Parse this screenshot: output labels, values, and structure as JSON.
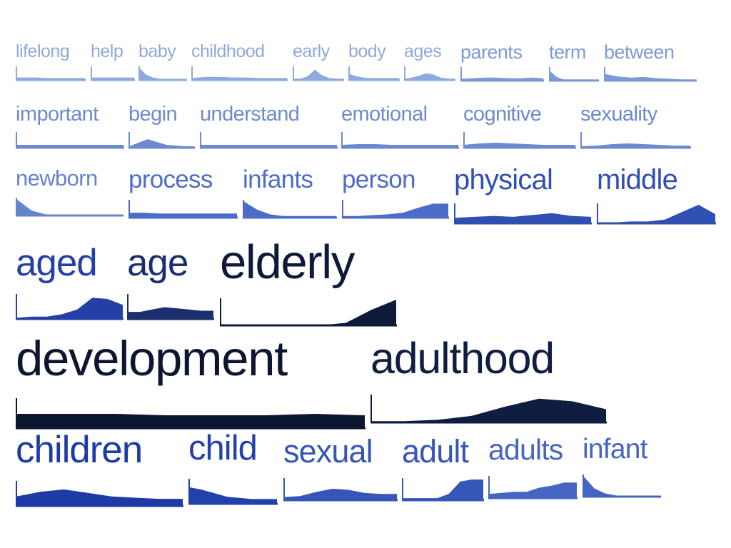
{
  "words": [
    {
      "text": "lifelong",
      "color": "#8fa9dc",
      "trend": [
        0.2,
        0.2,
        0.2,
        0.15,
        0.15,
        0.15,
        0.15,
        0.15
      ]
    },
    {
      "text": "help",
      "color": "#8fa9dc",
      "trend": [
        0.2,
        0.2,
        0.2,
        0.2,
        0.2,
        0.2,
        0.2,
        0.2
      ]
    },
    {
      "text": "baby",
      "color": "#8fa9dc",
      "trend": [
        1.0,
        0.45,
        0.2,
        0.1,
        0.05,
        0.05,
        0.05,
        0.05
      ]
    },
    {
      "text": "childhood",
      "color": "#8fa9dc",
      "trend": [
        0.15,
        0.25,
        0.25,
        0.2,
        0.2,
        0.15,
        0.15,
        0.15
      ]
    },
    {
      "text": "early",
      "color": "#8fa9dc",
      "trend": [
        0.1,
        0.1,
        0.3,
        0.85,
        0.4,
        0.15,
        0.1,
        0.1
      ]
    },
    {
      "text": "body",
      "color": "#8fa9dc",
      "trend": [
        0.5,
        0.3,
        0.2,
        0.15,
        0.15,
        0.15,
        0.15,
        0.15
      ]
    },
    {
      "text": "ages",
      "color": "#8fa9dc",
      "trend": [
        0.1,
        0.2,
        0.35,
        0.55,
        0.45,
        0.2,
        0.1,
        0.1
      ]
    },
    {
      "text": "parents",
      "color": "#7d9ad6",
      "trend": [
        0.15,
        0.2,
        0.25,
        0.25,
        0.2,
        0.2,
        0.25,
        0.2
      ]
    },
    {
      "text": "term",
      "color": "#7d9ad6",
      "trend": [
        0.8,
        0.3,
        0.1,
        0.1,
        0.1,
        0.1,
        0.1,
        0.1
      ]
    },
    {
      "text": "between",
      "color": "#7d9ad6",
      "trend": [
        0.55,
        0.35,
        0.25,
        0.3,
        0.2,
        0.15,
        0.1,
        0.1
      ]
    },
    {
      "text": "important",
      "color": "#6c8ad1",
      "trend": [
        0.2,
        0.2,
        0.2,
        0.2,
        0.2,
        0.2,
        0.2,
        0.2
      ]
    },
    {
      "text": "begin",
      "color": "#6c8ad1",
      "trend": [
        0.1,
        0.35,
        0.6,
        0.4,
        0.2,
        0.15,
        0.1,
        0.1
      ]
    },
    {
      "text": "understand",
      "color": "#6c8ad1",
      "trend": [
        0.2,
        0.2,
        0.2,
        0.2,
        0.2,
        0.2,
        0.2,
        0.2
      ]
    },
    {
      "text": "emotional",
      "color": "#6c8ad1",
      "trend": [
        0.2,
        0.25,
        0.25,
        0.2,
        0.2,
        0.2,
        0.2,
        0.2
      ]
    },
    {
      "text": "cognitive",
      "color": "#6c8ad1",
      "trend": [
        0.2,
        0.3,
        0.35,
        0.3,
        0.25,
        0.2,
        0.2,
        0.2
      ]
    },
    {
      "text": "sexuality",
      "color": "#6c8ad1",
      "trend": [
        0.1,
        0.15,
        0.25,
        0.3,
        0.25,
        0.2,
        0.15,
        0.15
      ]
    },
    {
      "text": "newborn",
      "color": "#6583cf",
      "trend": [
        1.0,
        0.3,
        0.05,
        0.05,
        0.05,
        0.05,
        0.05,
        0.05
      ]
    },
    {
      "text": "process",
      "color": "#4d6cc8",
      "trend": [
        0.3,
        0.3,
        0.25,
        0.25,
        0.25,
        0.25,
        0.25,
        0.25
      ]
    },
    {
      "text": "infants",
      "color": "#4d6cc8",
      "trend": [
        1.0,
        0.5,
        0.2,
        0.1,
        0.1,
        0.1,
        0.1,
        0.1
      ]
    },
    {
      "text": "person",
      "color": "#4d6cc8",
      "trend": [
        0.1,
        0.1,
        0.15,
        0.2,
        0.3,
        0.6,
        0.85,
        0.85
      ]
    },
    {
      "text": "physical",
      "color": "#2f4fb2",
      "trend": [
        0.3,
        0.35,
        0.4,
        0.35,
        0.45,
        0.55,
        0.4,
        0.35
      ]
    },
    {
      "text": "middle",
      "color": "#2f4fb2",
      "trend": [
        0.05,
        0.05,
        0.1,
        0.1,
        0.2,
        0.6,
        1.0,
        0.5
      ]
    },
    {
      "text": "aged",
      "color": "#2440a6",
      "trend": [
        0.05,
        0.1,
        0.1,
        0.2,
        0.4,
        0.9,
        0.85,
        0.6
      ]
    },
    {
      "text": "age",
      "color": "#1b2e6e",
      "trend": [
        0.3,
        0.3,
        0.4,
        0.5,
        0.45,
        0.4,
        0.35,
        0.35
      ]
    },
    {
      "text": "elderly",
      "color": "#0e1a3a",
      "trend": [
        0.0,
        0.0,
        0.0,
        0.0,
        0.0,
        0.1,
        0.6,
        1.0
      ]
    },
    {
      "text": "development",
      "color": "#0d1630",
      "trend": [
        0.5,
        0.5,
        0.5,
        0.45,
        0.45,
        0.45,
        0.5,
        0.45
      ]
    },
    {
      "text": "adulthood",
      "color": "#0f1d40",
      "trend": [
        0.05,
        0.05,
        0.1,
        0.25,
        0.6,
        0.9,
        0.8,
        0.5
      ]
    },
    {
      "text": "children",
      "color": "#1d3aa6",
      "trend": [
        0.4,
        0.6,
        0.7,
        0.55,
        0.4,
        0.35,
        0.3,
        0.3
      ]
    },
    {
      "text": "child",
      "color": "#2341ac",
      "trend": [
        0.7,
        0.6,
        0.45,
        0.3,
        0.25,
        0.2,
        0.2,
        0.2
      ]
    },
    {
      "text": "sexual",
      "color": "#3655b8",
      "trend": [
        0.15,
        0.2,
        0.4,
        0.55,
        0.5,
        0.35,
        0.3,
        0.3
      ]
    },
    {
      "text": "adult",
      "color": "#3655b8",
      "trend": [
        0.1,
        0.1,
        0.1,
        0.1,
        0.3,
        0.9,
        1.0,
        1.0
      ]
    },
    {
      "text": "adults",
      "color": "#4664c2",
      "trend": [
        0.2,
        0.25,
        0.3,
        0.3,
        0.5,
        0.6,
        0.75,
        0.75
      ]
    },
    {
      "text": "infant",
      "color": "#4664c2",
      "trend": [
        1.0,
        0.4,
        0.15,
        0.05,
        0.05,
        0.05,
        0.05,
        0.05
      ]
    }
  ]
}
